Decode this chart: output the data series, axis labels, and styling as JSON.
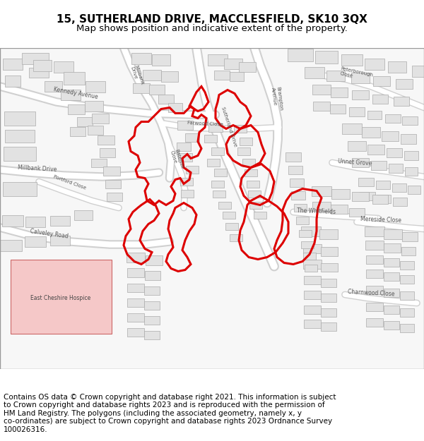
{
  "title_line1": "15, SUTHERLAND DRIVE, MACCLESFIELD, SK10 3QX",
  "title_line2": "Map shows position and indicative extent of the property.",
  "copyright_text": "Contains OS data © Crown copyright and database right 2021. This information is subject\nto Crown copyright and database rights 2023 and is reproduced with the permission of\nHM Land Registry. The polygons (including the associated geometry, namely x, y\nco-ordinates) are subject to Crown copyright and database rights 2023 Ordnance Survey\n100026316.",
  "bg_color": "#ffffff",
  "map_bg_color": "#f8f8f8",
  "road_color": "#ffffff",
  "building_color": "#e2e2e2",
  "building_edge_color": "#aaaaaa",
  "red_color": "#dd0000",
  "title_fontsize": 11,
  "subtitle_fontsize": 9.5,
  "copyright_fontsize": 7.5,
  "figsize": [
    6.0,
    6.25
  ],
  "dpi": 100
}
